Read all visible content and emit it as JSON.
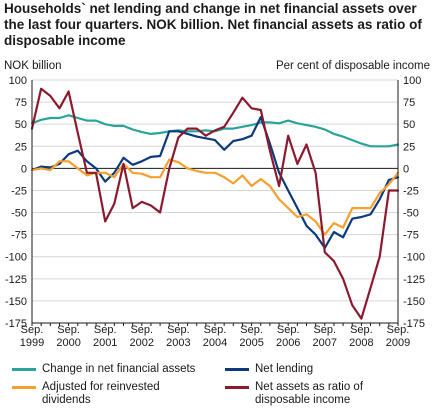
{
  "title": "Households` net lending and change in net financial assets over the last four quarters. NOK billion. Net financial assets as ratio of disposable income",
  "left_axis_label": "NOK billion",
  "right_axis_label": "Per cent of disposable income",
  "chart_data": {
    "type": "line",
    "title": "Households` net lending and change in net financial assets over the last four quarters. NOK billion. Net financial assets as ratio of disposable income",
    "ylabel_left": "NOK billion",
    "ylabel_right": "Per cent of disposable income",
    "ylim_left": [
      -175,
      100
    ],
    "ylim_right": [
      -175,
      100
    ],
    "yticks": [
      100,
      75,
      50,
      25,
      0,
      -25,
      -50,
      -75,
      -100,
      -125,
      -150,
      -175
    ],
    "grid": true,
    "legend_position": "bottom",
    "x_tick_labels": [
      {
        "line1": "Sep.",
        "line2": "1999"
      },
      {
        "line1": "Sep.",
        "line2": "2000"
      },
      {
        "line1": "Sep.",
        "line2": "2001"
      },
      {
        "line1": "Sep.",
        "line2": "2002"
      },
      {
        "line1": "Sep.",
        "line2": "2003"
      },
      {
        "line1": "Sep.",
        "line2": "2004"
      },
      {
        "line1": "Sep.",
        "line2": "2005"
      },
      {
        "line1": "Sep.",
        "line2": "2006"
      },
      {
        "line1": "Sep.",
        "line2": "2007"
      },
      {
        "line1": "Sep.",
        "line2": "2008"
      },
      {
        "line1": "Sep.",
        "line2": "2009"
      }
    ],
    "quarters": [
      "1999Q3",
      "1999Q4",
      "2000Q1",
      "2000Q2",
      "2000Q3",
      "2000Q4",
      "2001Q1",
      "2001Q2",
      "2001Q3",
      "2001Q4",
      "2002Q1",
      "2002Q2",
      "2002Q3",
      "2002Q4",
      "2003Q1",
      "2003Q2",
      "2003Q3",
      "2003Q4",
      "2004Q1",
      "2004Q2",
      "2004Q3",
      "2004Q4",
      "2005Q1",
      "2005Q2",
      "2005Q3",
      "2005Q4",
      "2006Q1",
      "2006Q2",
      "2006Q3",
      "2006Q4",
      "2007Q1",
      "2007Q2",
      "2007Q3",
      "2007Q4",
      "2008Q1",
      "2008Q2",
      "2008Q3",
      "2008Q4",
      "2009Q1",
      "2009Q2",
      "2009Q3"
    ],
    "series": [
      {
        "name": "Change in net financial assets",
        "color": "#2aa39a",
        "axis": "left",
        "values": [
          51,
          55,
          57,
          57,
          60,
          57,
          54,
          54,
          50,
          48,
          48,
          44,
          41,
          39,
          40,
          42,
          43,
          42,
          42,
          43,
          42,
          45,
          45,
          47,
          49,
          52,
          52,
          51,
          54,
          51,
          49,
          47,
          44,
          39,
          36,
          32,
          28,
          25,
          25,
          25,
          27
        ]
      },
      {
        "name": "Net lending",
        "color": "#0d3a7d",
        "axis": "left",
        "values": [
          -2,
          2,
          1,
          5,
          16,
          20,
          8,
          0,
          -15,
          -5,
          12,
          4,
          8,
          13,
          14,
          42,
          42,
          39,
          36,
          34,
          32,
          21,
          31,
          33,
          37,
          58,
          28,
          -5,
          -25,
          -45,
          -65,
          -75,
          -90,
          -72,
          -78,
          -57,
          -55,
          -52,
          -35,
          -13,
          -10
        ]
      },
      {
        "name": "Adjusted  for reinvested dividends",
        "color": "#f5a02f",
        "axis": "left",
        "values": [
          -2,
          0,
          -2,
          8,
          8,
          0,
          -8,
          -5,
          -5,
          -10,
          5,
          -5,
          -6,
          -10,
          -10,
          10,
          7,
          0,
          -3,
          -5,
          -5,
          -10,
          -17,
          -8,
          -20,
          -12,
          -20,
          -35,
          -45,
          -55,
          -52,
          -60,
          -75,
          -62,
          -67,
          -45,
          -45,
          -45,
          -28,
          -18,
          -5
        ]
      },
      {
        "name": "Net assets as ratio of disposable income",
        "color": "#8b1a2e",
        "axis": "right",
        "values": [
          45,
          90,
          82,
          68,
          87,
          40,
          -5,
          -5,
          -60,
          -40,
          5,
          -45,
          -38,
          -42,
          -50,
          0,
          35,
          45,
          45,
          37,
          43,
          47,
          63,
          80,
          68,
          66,
          20,
          -20,
          37,
          5,
          27,
          -5,
          -95,
          -105,
          -125,
          -155,
          -170,
          -135,
          -100,
          -25,
          -25
        ]
      }
    ]
  }
}
